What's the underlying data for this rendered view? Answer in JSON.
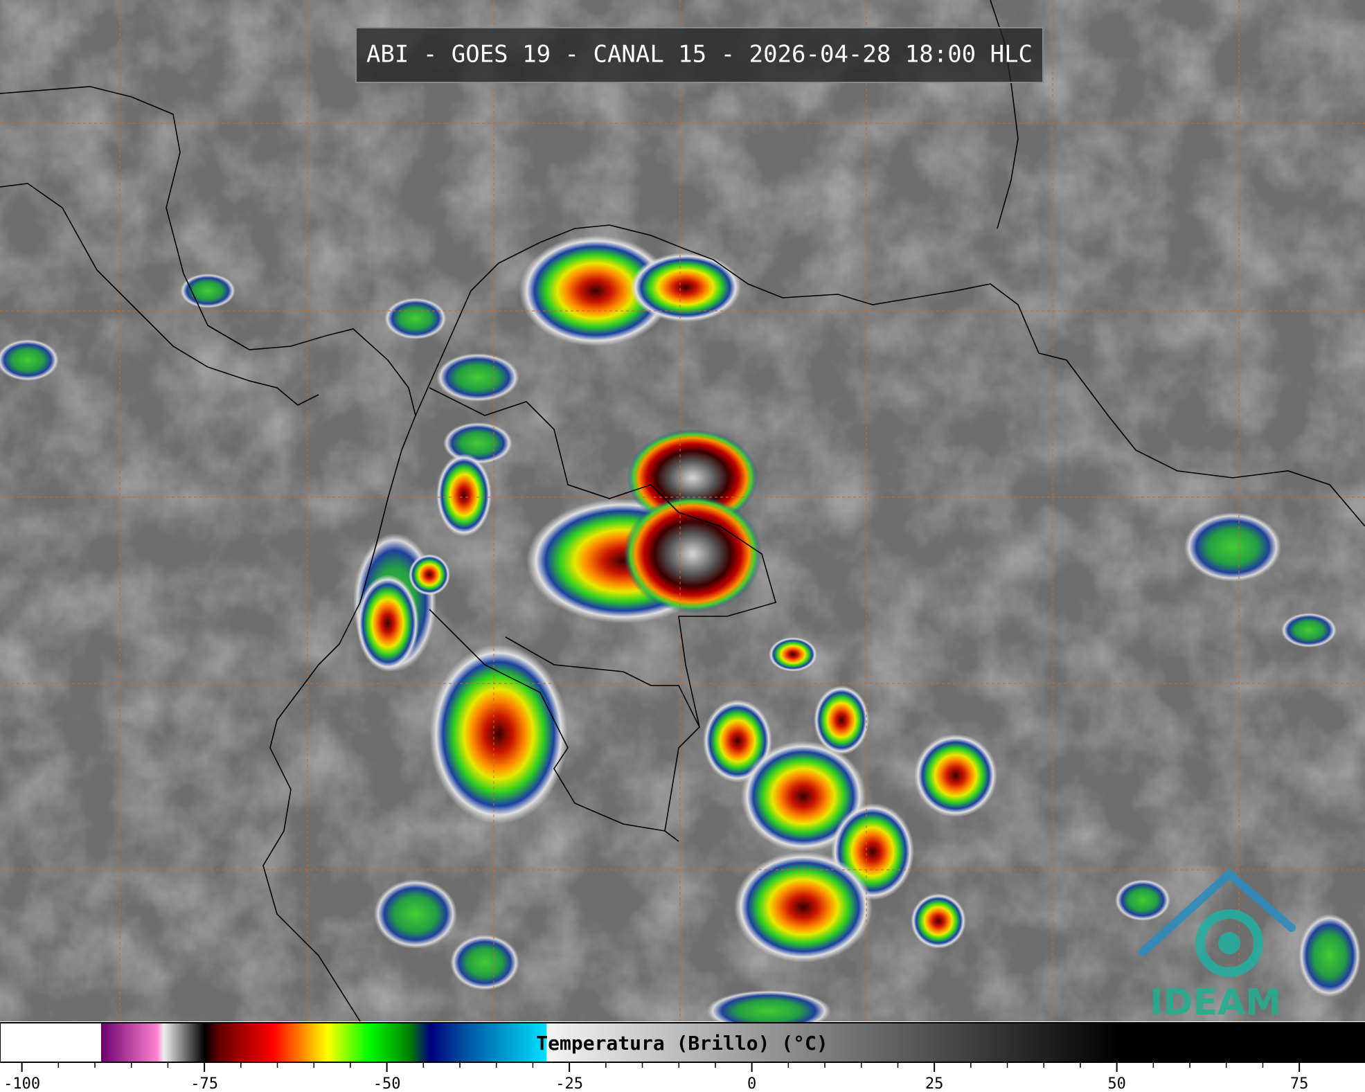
{
  "header": {
    "title": "ABI - GOES 19 - CANAL 15 - 2026-04-28 18:00 HLC"
  },
  "logo": {
    "text": "IDEAM"
  },
  "colorbar": {
    "label": "Temperatura (Brillo) (°C)",
    "range": [
      -103,
      84
    ],
    "ticks": [
      -100,
      -75,
      -50,
      -25,
      0,
      25,
      50,
      75
    ]
  }
}
